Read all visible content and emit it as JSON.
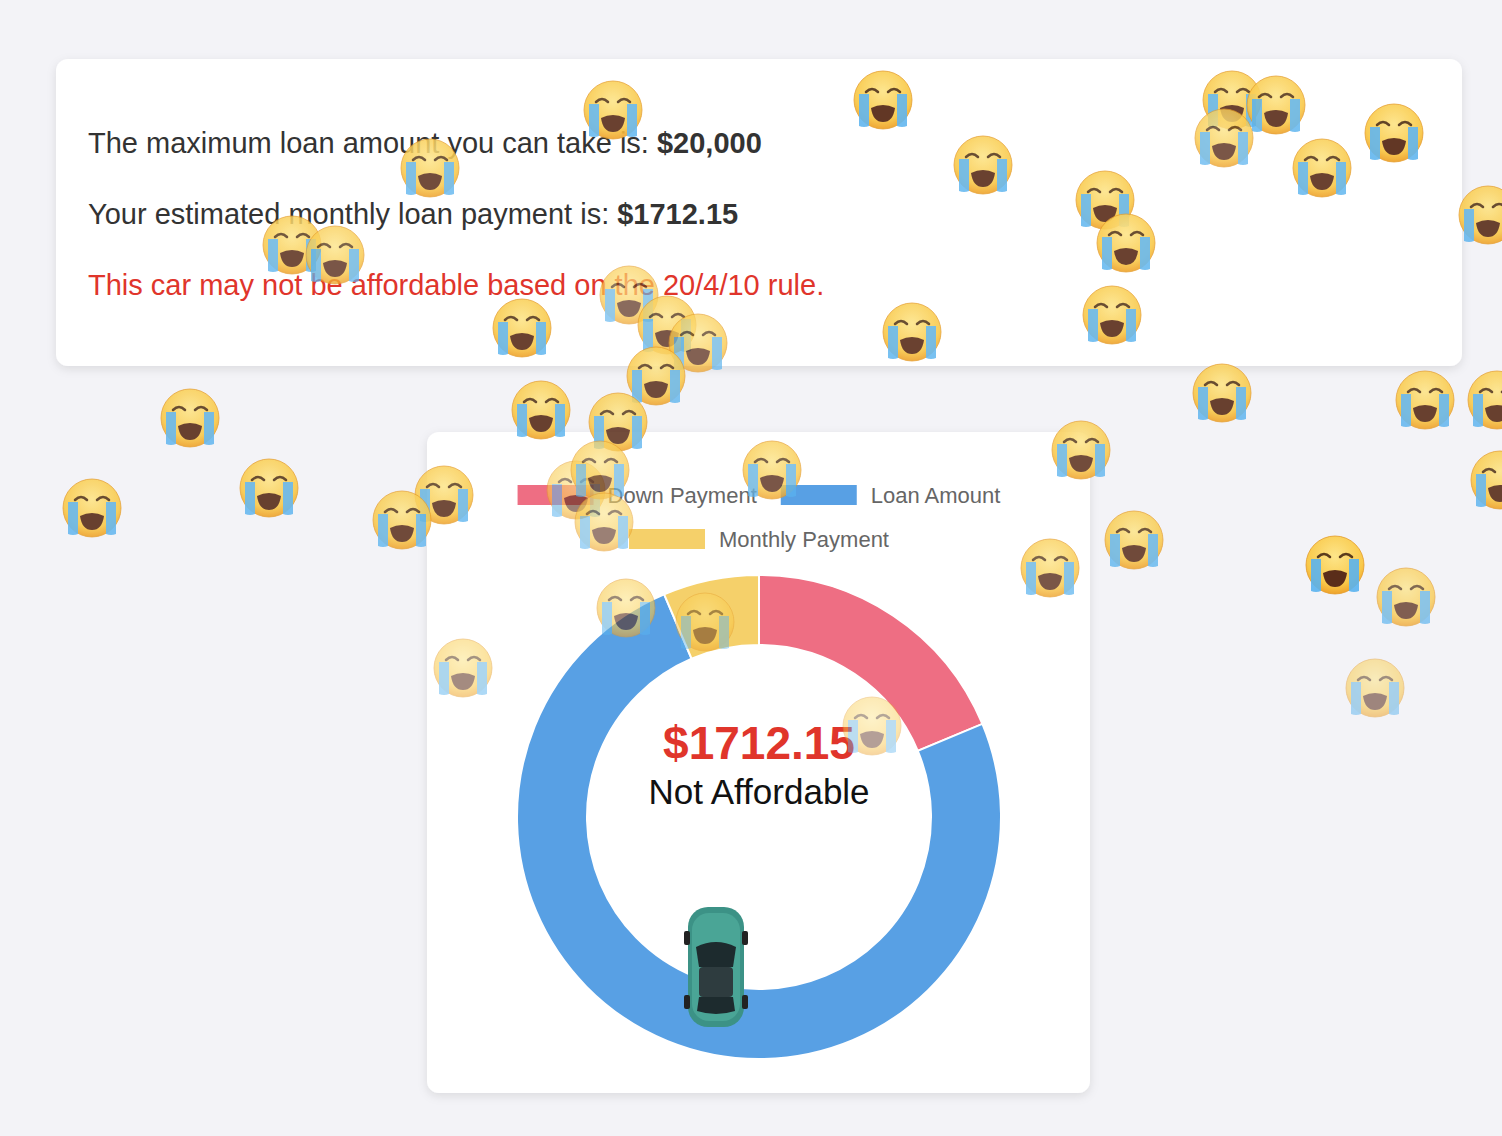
{
  "summary": {
    "max_loan_label": "The maximum loan amount you can take is:",
    "max_loan": "$20,000",
    "monthly_label": "Your estimated monthly loan payment is:",
    "monthly_payment": "$1712.15",
    "warning": "This car may not be affordable based on the 20/4/10 rule."
  },
  "chart_data": {
    "type": "doughnut",
    "categories": [
      "Down Payment",
      "Loan Amount",
      "Monthly Payment"
    ],
    "values": [
      5000,
      20000,
      1712.15
    ],
    "colors": [
      "#ee6e83",
      "#58a0e4",
      "#f5d06a"
    ],
    "legend": "top",
    "annotations": [
      "$1712.15",
      "Not Affordable"
    ]
  }
}
